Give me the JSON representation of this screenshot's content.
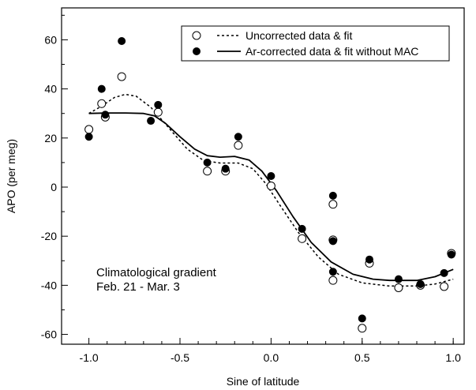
{
  "chart_data": {
    "type": "scatter",
    "title": "",
    "xlabel": "Sine of latitude",
    "ylabel": "APO (per meg)",
    "xlim": [
      -1.15,
      1.06
    ],
    "ylim": [
      -64,
      73
    ],
    "x_ticks": [
      -1.0,
      -0.5,
      0.0,
      0.5,
      1.0
    ],
    "x_tick_labels": [
      "-1.0",
      "-0.5",
      "0.0",
      "0.5",
      "1.0"
    ],
    "y_ticks": [
      -60,
      -40,
      -20,
      0,
      20,
      40,
      60
    ],
    "y_tick_labels": [
      "-60",
      "-40",
      "-20",
      "0",
      "20",
      "40",
      "60"
    ],
    "grid": false,
    "legend_position": "top-right",
    "annotation": [
      "Climatological gradient",
      "Feb. 21 - Mar. 3"
    ],
    "series": [
      {
        "name": "Uncorrected data & fit",
        "marker": "open-circle",
        "line_style": "dashed",
        "color": "#000000",
        "points": [
          [
            -1.0,
            23.5
          ],
          [
            -0.93,
            34
          ],
          [
            -0.91,
            28.5
          ],
          [
            -0.82,
            45
          ],
          [
            -0.62,
            30.5
          ],
          [
            -0.35,
            6.5
          ],
          [
            -0.25,
            6.5
          ],
          [
            -0.18,
            17
          ],
          [
            0.0,
            0.5
          ],
          [
            0.17,
            -21
          ],
          [
            0.34,
            -7
          ],
          [
            0.34,
            -21.5
          ],
          [
            0.34,
            -38
          ],
          [
            0.5,
            -57.5
          ],
          [
            0.54,
            -31
          ],
          [
            0.7,
            -41
          ],
          [
            0.82,
            -40
          ],
          [
            0.95,
            -40.5
          ],
          [
            0.99,
            -27
          ]
        ],
        "fit": [
          [
            -1.0,
            30
          ],
          [
            -0.93,
            33
          ],
          [
            -0.86,
            36.5
          ],
          [
            -0.8,
            37.8
          ],
          [
            -0.74,
            37
          ],
          [
            -0.66,
            32.5
          ],
          [
            -0.56,
            24
          ],
          [
            -0.46,
            15.5
          ],
          [
            -0.37,
            10.8
          ],
          [
            -0.28,
            9.8
          ],
          [
            -0.18,
            9.8
          ],
          [
            -0.1,
            7.5
          ],
          [
            -0.03,
            1.5
          ],
          [
            0.05,
            -7.5
          ],
          [
            0.15,
            -18.5
          ],
          [
            0.26,
            -28.5
          ],
          [
            0.37,
            -35.5
          ],
          [
            0.5,
            -39
          ],
          [
            0.65,
            -40.3
          ],
          [
            0.8,
            -40.3
          ],
          [
            0.9,
            -39.5
          ],
          [
            1.0,
            -37.5
          ]
        ]
      },
      {
        "name": "Ar-corrected data & fit without MAC",
        "marker": "filled-circle",
        "line_style": "solid",
        "color": "#000000",
        "points": [
          [
            -1.0,
            20.5
          ],
          [
            -0.93,
            40
          ],
          [
            -0.91,
            29.5
          ],
          [
            -0.82,
            59.5
          ],
          [
            -0.66,
            27
          ],
          [
            -0.62,
            33.5
          ],
          [
            -0.35,
            10
          ],
          [
            -0.25,
            7.5
          ],
          [
            -0.18,
            20.5
          ],
          [
            0.0,
            4.5
          ],
          [
            0.17,
            -17
          ],
          [
            0.34,
            -3.5
          ],
          [
            0.34,
            -22
          ],
          [
            0.34,
            -34.5
          ],
          [
            0.5,
            -53.5
          ],
          [
            0.54,
            -29.5
          ],
          [
            0.7,
            -37.5
          ],
          [
            0.82,
            -39.5
          ],
          [
            0.95,
            -35
          ],
          [
            0.99,
            -27.5
          ]
        ],
        "fit": [
          [
            -1.0,
            30
          ],
          [
            -0.9,
            30.2
          ],
          [
            -0.8,
            30.2
          ],
          [
            -0.7,
            30
          ],
          [
            -0.64,
            29
          ],
          [
            -0.58,
            26
          ],
          [
            -0.5,
            20.5
          ],
          [
            -0.42,
            15.5
          ],
          [
            -0.35,
            12.8
          ],
          [
            -0.28,
            12.2
          ],
          [
            -0.2,
            12.5
          ],
          [
            -0.12,
            11
          ],
          [
            -0.05,
            6.5
          ],
          [
            0.03,
            -1.5
          ],
          [
            0.12,
            -12
          ],
          [
            0.22,
            -22.5
          ],
          [
            0.33,
            -30.5
          ],
          [
            0.45,
            -35.5
          ],
          [
            0.56,
            -37.5
          ],
          [
            0.65,
            -38
          ],
          [
            0.8,
            -38
          ],
          [
            0.9,
            -36.5
          ],
          [
            1.0,
            -33.5
          ]
        ]
      }
    ]
  }
}
